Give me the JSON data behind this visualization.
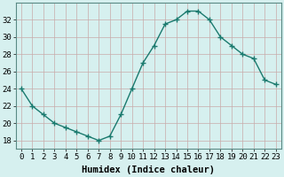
{
  "x": [
    0,
    1,
    2,
    3,
    4,
    5,
    6,
    7,
    8,
    9,
    10,
    11,
    12,
    13,
    14,
    15,
    16,
    17,
    18,
    19,
    20,
    21,
    22,
    23
  ],
  "y": [
    24,
    22,
    21,
    20,
    19.5,
    19,
    18.5,
    18,
    18.5,
    21,
    24,
    27,
    29,
    31.5,
    32,
    33,
    33,
    32,
    30,
    29,
    28,
    27.5,
    25,
    24.5
  ],
  "line_color": "#1a7a6e",
  "marker": "+",
  "marker_size": 4,
  "bg_color": "#d6f0ef",
  "grid_color_v": "#c8aaaa",
  "grid_color_h": "#c8aaaa",
  "xlabel": "Humidex (Indice chaleur)",
  "ylim": [
    17,
    34
  ],
  "yticks": [
    18,
    20,
    22,
    24,
    26,
    28,
    30,
    32
  ],
  "xticks": [
    0,
    1,
    2,
    3,
    4,
    5,
    6,
    7,
    8,
    9,
    10,
    11,
    12,
    13,
    14,
    15,
    16,
    17,
    18,
    19,
    20,
    21,
    22,
    23
  ],
  "xlabel_fontsize": 7.5,
  "tick_fontsize": 6.5
}
